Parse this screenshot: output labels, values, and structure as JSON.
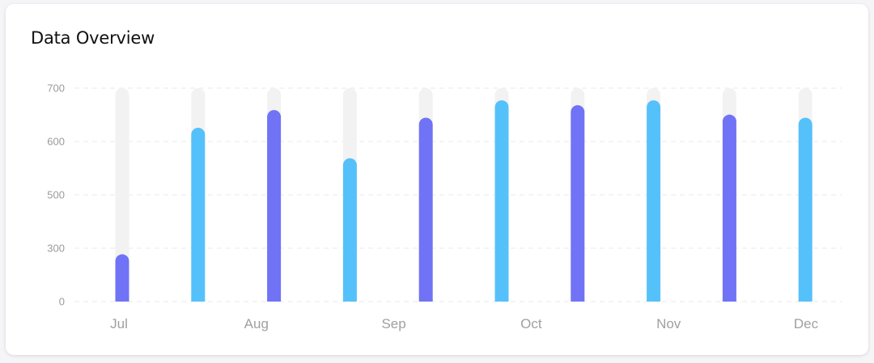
{
  "card": {
    "title": "Data Overview"
  },
  "colors": {
    "purple": "#7073f5",
    "blue": "#55c1fb",
    "track": "#f2f2f2",
    "grid": "#e9e9e9"
  },
  "chart_data": {
    "type": "bar",
    "title": "Data Overview",
    "yticks": [
      "0",
      "300",
      "500",
      "600",
      "700"
    ],
    "xticks": [
      "Jul",
      "Aug",
      "Sep",
      "Oct",
      "Nov",
      "Dec"
    ],
    "ylim": [
      0,
      700
    ],
    "grid": true,
    "bar_max": 700,
    "bars": [
      {
        "value": 155,
        "color": "purple"
      },
      {
        "value": 570,
        "color": "blue"
      },
      {
        "value": 628,
        "color": "purple"
      },
      {
        "value": 470,
        "color": "blue"
      },
      {
        "value": 603,
        "color": "purple"
      },
      {
        "value": 660,
        "color": "blue"
      },
      {
        "value": 644,
        "color": "purple"
      },
      {
        "value": 660,
        "color": "blue"
      },
      {
        "value": 613,
        "color": "purple"
      },
      {
        "value": 603,
        "color": "blue"
      }
    ]
  }
}
